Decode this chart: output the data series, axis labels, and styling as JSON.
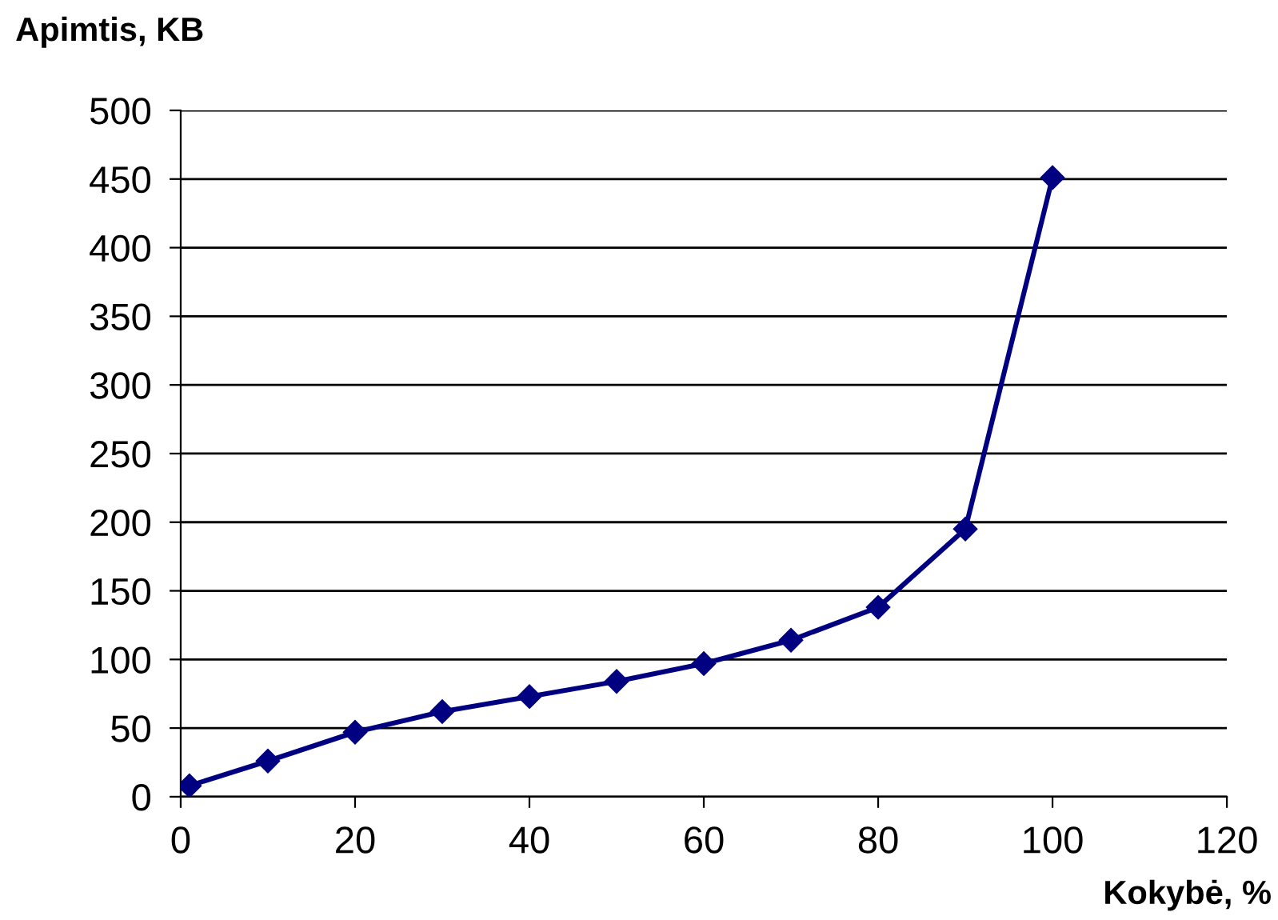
{
  "chart_data": {
    "type": "line",
    "xlabel": "Kokybė, %",
    "ylabel": "Apimtis, KB",
    "x": [
      1,
      10,
      20,
      30,
      40,
      50,
      60,
      70,
      80,
      90,
      100
    ],
    "series": [
      {
        "color": "#000080",
        "values": [
          8,
          26,
          47,
          62,
          73,
          84,
          97,
          114,
          138,
          195,
          451
        ]
      }
    ],
    "xlim": [
      0,
      120
    ],
    "xticks": [
      0,
      20,
      40,
      60,
      80,
      100,
      120
    ],
    "ylim": [
      0,
      500
    ],
    "yticks": [
      0,
      50,
      100,
      150,
      200,
      250,
      300,
      350,
      400,
      450,
      500
    ],
    "grid": "y",
    "marker": "diamond",
    "line_style": "solid",
    "legend": false
  }
}
